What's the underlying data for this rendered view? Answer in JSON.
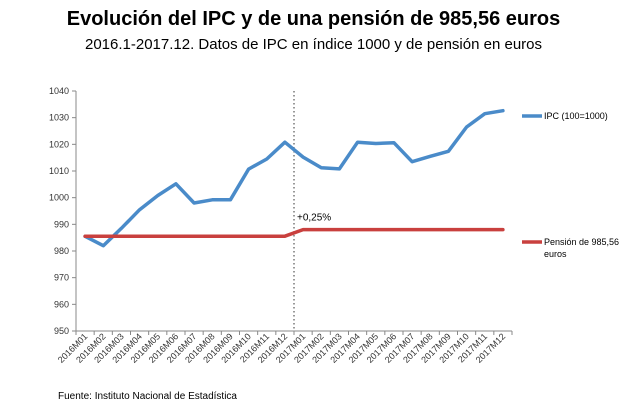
{
  "chart_data": {
    "type": "line",
    "title": "Evolución del IPC y de una pensión de 985,56 euros",
    "subtitle": "2016.1-2017.12. Datos de IPC en índice 1000 y de pensión en euros",
    "source": "Fuente: Instituto Nacional de Estadística",
    "categories": [
      "2016M01",
      "2016M02",
      "2016M03",
      "2016M04",
      "2016M05",
      "2016M06",
      "2016M07",
      "2016M08",
      "2016M09",
      "2016M10",
      "2016M11",
      "2016M12",
      "2017M01",
      "2017M02",
      "2017M03",
      "2017M04",
      "2017M05",
      "2017M06",
      "2017M07",
      "2017M08",
      "2017M09",
      "2017M10",
      "2017M11",
      "2017M12"
    ],
    "ylim": [
      950,
      1040
    ],
    "yticks": [
      "950",
      "960",
      "970",
      "980",
      "990",
      "1000",
      "1010",
      "1020",
      "1030",
      "1040"
    ],
    "series": [
      {
        "name": "IPC (100=1000)",
        "color": "#4A8BC9",
        "values": [
          985.5,
          982.0,
          988.5,
          995.5,
          1000.8,
          1005.2,
          998.0,
          999.2,
          999.2,
          1010.7,
          1014.5,
          1020.8,
          1015.2,
          1011.2,
          1010.8,
          1020.8,
          1020.3,
          1020.6,
          1013.5,
          1015.5,
          1017.4,
          1026.5,
          1031.5,
          1032.6
        ]
      },
      {
        "name": "Pensión de 985,56 euros",
        "color": "#C9403E",
        "values": [
          985.56,
          985.56,
          985.56,
          985.56,
          985.56,
          985.56,
          985.56,
          985.56,
          985.56,
          985.56,
          985.56,
          985.56,
          988.02,
          988.02,
          988.02,
          988.02,
          988.02,
          988.02,
          988.02,
          988.02,
          988.02,
          988.02,
          988.02,
          988.02
        ]
      }
    ],
    "annotation": "+0,25%",
    "legend_placement": "right",
    "grid": false
  }
}
